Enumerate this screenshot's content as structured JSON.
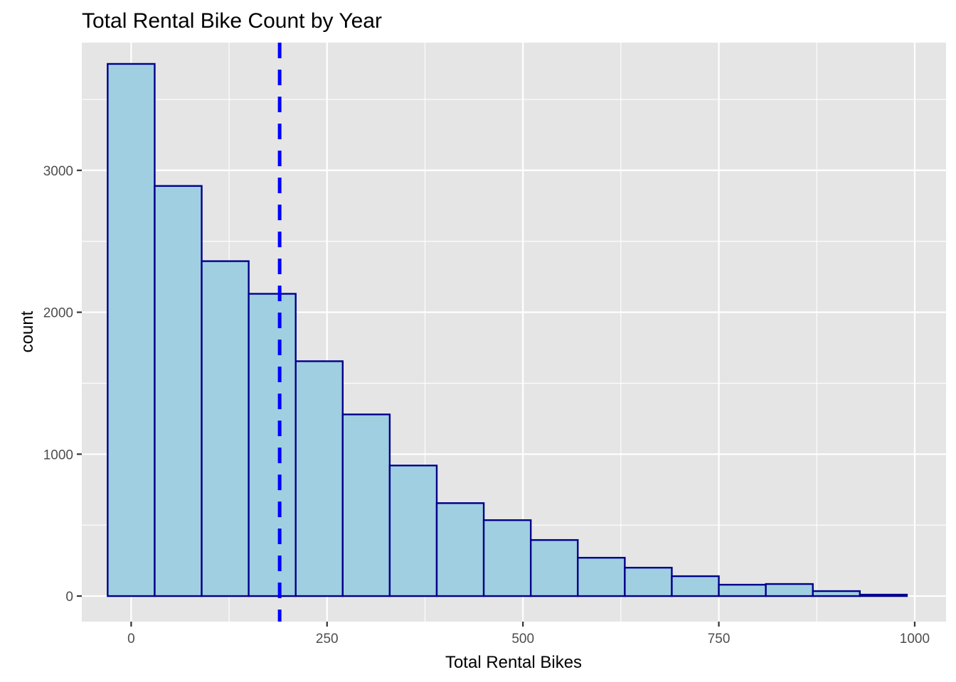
{
  "chart_data": {
    "type": "bar",
    "subtype": "histogram",
    "title": "Total Rental Bike Count by Year",
    "xlabel": "Total Rental Bikes",
    "ylabel": "count",
    "xlim": [
      -63,
      1040
    ],
    "ylim": [
      -180,
      3900
    ],
    "x_ticks": [
      0,
      250,
      500,
      750,
      1000
    ],
    "x_tick_labels": [
      "0",
      "250",
      "500",
      "750",
      "1000"
    ],
    "y_ticks": [
      0,
      1000,
      2000,
      3000
    ],
    "y_tick_labels": [
      "0",
      "1000",
      "2000",
      "3000"
    ],
    "bin_width": 60,
    "bins": [
      {
        "start": -30,
        "end": 30,
        "count": 3750
      },
      {
        "start": 30,
        "end": 90,
        "count": 2890
      },
      {
        "start": 90,
        "end": 150,
        "count": 2360
      },
      {
        "start": 150,
        "end": 210,
        "count": 2130
      },
      {
        "start": 210,
        "end": 270,
        "count": 1655
      },
      {
        "start": 270,
        "end": 330,
        "count": 1280
      },
      {
        "start": 330,
        "end": 390,
        "count": 920
      },
      {
        "start": 390,
        "end": 450,
        "count": 655
      },
      {
        "start": 450,
        "end": 510,
        "count": 535
      },
      {
        "start": 510,
        "end": 570,
        "count": 395
      },
      {
        "start": 570,
        "end": 630,
        "count": 270
      },
      {
        "start": 630,
        "end": 690,
        "count": 200
      },
      {
        "start": 690,
        "end": 750,
        "count": 140
      },
      {
        "start": 750,
        "end": 810,
        "count": 80
      },
      {
        "start": 810,
        "end": 870,
        "count": 85
      },
      {
        "start": 870,
        "end": 930,
        "count": 35
      },
      {
        "start": 930,
        "end": 990,
        "count": 10
      }
    ],
    "reference_line": {
      "x": 189.5,
      "style": "dashed",
      "color": "#0000ff"
    },
    "grid": true,
    "colors": {
      "panel_background": "#e5e5e5",
      "grid": "#ffffff",
      "bar_fill": "#a0cfe1",
      "bar_outline": "#00008b",
      "tick_label": "#4d4d4d",
      "axis_title": "#000000"
    }
  }
}
